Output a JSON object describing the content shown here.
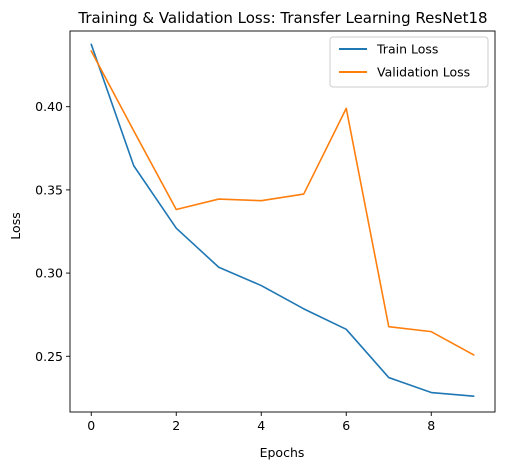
{
  "chart_data": {
    "type": "line",
    "title": "Training & Validation Loss: Transfer Learning ResNet18",
    "xlabel": "Epochs",
    "ylabel": "Loss",
    "x": [
      0,
      1,
      2,
      3,
      4,
      5,
      6,
      7,
      8,
      9
    ],
    "xlim": [
      -0.5,
      9.5
    ],
    "ylim": [
      0.2165,
      0.4455
    ],
    "xticks": [
      0,
      2,
      4,
      6,
      8
    ],
    "yticks": [
      0.25,
      0.3,
      0.35,
      0.4
    ],
    "xtick_labels": [
      "0",
      "2",
      "4",
      "6",
      "8"
    ],
    "ytick_labels": [
      "0.25",
      "0.30",
      "0.35",
      "0.40"
    ],
    "grid": false,
    "legend_position": "upper-right",
    "series": [
      {
        "name": "Train Loss",
        "color": "#1f77b4",
        "values": [
          0.4375,
          0.3645,
          0.327,
          0.3035,
          0.2925,
          0.2785,
          0.2662,
          0.2372,
          0.2282,
          0.226
        ]
      },
      {
        "name": "Validation Loss",
        "color": "#ff7f0e",
        "values": [
          0.4335,
          0.3855,
          0.3382,
          0.3445,
          0.3435,
          0.3475,
          0.399,
          0.2678,
          0.2648,
          0.2508
        ]
      }
    ]
  }
}
